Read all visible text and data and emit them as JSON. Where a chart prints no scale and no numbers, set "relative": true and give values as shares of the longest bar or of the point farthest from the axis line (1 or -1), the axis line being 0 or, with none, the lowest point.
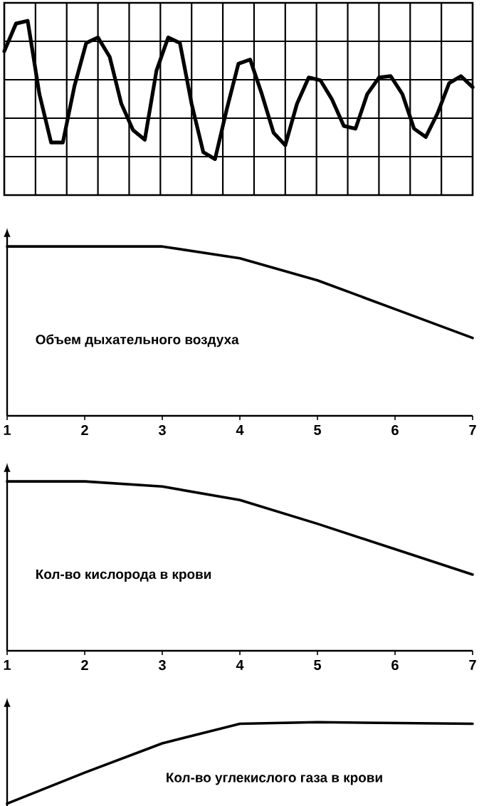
{
  "chart_data": [
    {
      "type": "line",
      "relative": true,
      "grid": true,
      "tick_labels": false,
      "color": "#000000",
      "categories": [
        null,
        null,
        null,
        null,
        null,
        null,
        null,
        null,
        null,
        null,
        null,
        null,
        null,
        null,
        null,
        null,
        null,
        null,
        null,
        null,
        null,
        null,
        null,
        null,
        null,
        null,
        null,
        null,
        null,
        null,
        null,
        null,
        null,
        null,
        null,
        null,
        null,
        null,
        null,
        null,
        null
      ],
      "values": [
        0.78,
        0.98,
        1.0,
        0.47,
        0.12,
        0.12,
        0.53,
        0.84,
        0.88,
        0.74,
        0.4,
        0.21,
        0.14,
        0.64,
        0.88,
        0.84,
        0.4,
        0.05,
        0.0,
        0.36,
        0.69,
        0.72,
        0.47,
        0.19,
        0.1,
        0.4,
        0.59,
        0.57,
        0.43,
        0.24,
        0.22,
        0.47,
        0.59,
        0.6,
        0.47,
        0.22,
        0.16,
        0.33,
        0.55,
        0.6,
        0.52
      ]
    },
    {
      "type": "line",
      "relative": true,
      "tick_labels": "x",
      "x": [
        1,
        2,
        3,
        4,
        5,
        6,
        7
      ],
      "xlim": [
        1,
        7
      ],
      "xticks": [
        1,
        2,
        3,
        4,
        5,
        6,
        7
      ],
      "series": [
        {
          "name": "Объем дыхательного воздуха",
          "color": "#000000",
          "values": [
            1.0,
            1.0,
            1.0,
            0.93,
            0.8,
            0.63,
            0.46
          ]
        }
      ]
    },
    {
      "type": "line",
      "relative": true,
      "tick_labels": "x",
      "x": [
        1,
        2,
        3,
        4,
        5,
        6,
        7
      ],
      "xlim": [
        1,
        7
      ],
      "xticks": [
        1,
        2,
        3,
        4,
        5,
        6,
        7
      ],
      "series": [
        {
          "name": "Кол-во кислорода в крови",
          "color": "#000000",
          "values": [
            1.0,
            1.0,
            0.97,
            0.89,
            0.75,
            0.6,
            0.45
          ]
        }
      ]
    },
    {
      "type": "line",
      "relative": true,
      "tick_labels": false,
      "x": [
        1,
        2,
        3,
        4,
        5,
        6,
        7
      ],
      "xlim": [
        1,
        7
      ],
      "series": [
        {
          "name": "Кол-во углекислого газа в крови",
          "color": "#000000",
          "values": [
            0.0,
            0.38,
            0.74,
            0.98,
            1.0,
            0.99,
            0.98
          ]
        }
      ]
    }
  ]
}
